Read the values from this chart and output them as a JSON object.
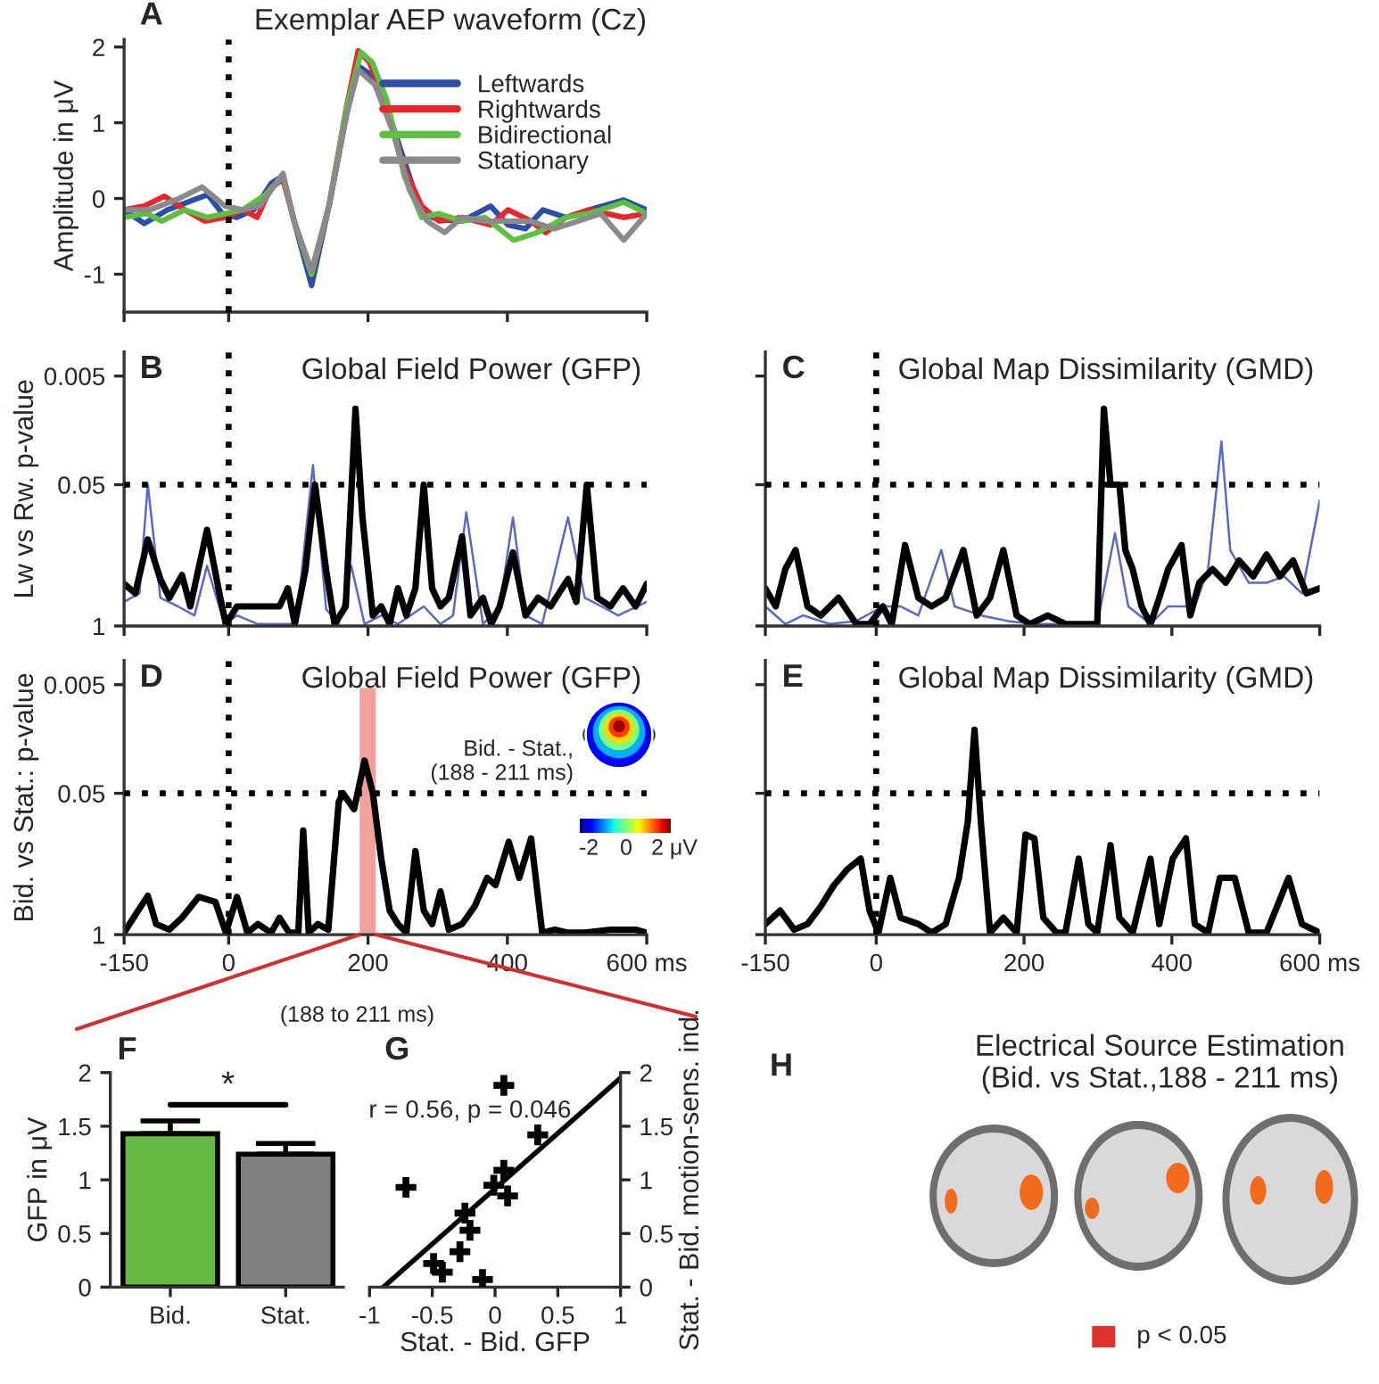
{
  "chart_data": [
    {
      "type": "line",
      "title": "Exemplar AEP waveform (Cz)",
      "ylabel": "Amplitude in μV",
      "annotations": [
        "A"
      ],
      "xlim": [
        -150,
        600
      ],
      "ylim": [
        -1.5,
        2.1
      ],
      "xticks": [
        -150,
        0,
        200,
        400,
        600
      ],
      "yticks": [
        -1,
        0,
        1,
        2
      ],
      "tick_labels": "y",
      "legend": "top right",
      "ref_lines": [
        {
          "axis": "x",
          "value": 0,
          "line_style": "dotted",
          "color": "#000000"
        }
      ],
      "series": [
        {
          "name": "Leftwards",
          "color": "#2b4fa8",
          "x": [
            -150,
            -121,
            -88,
            -51,
            -30,
            -9,
            12,
            36,
            61,
            78,
            94,
            119,
            144,
            169,
            186,
            202,
            227,
            252,
            277,
            302,
            335,
            376,
            401,
            426,
            451,
            484,
            517,
            567,
            600
          ],
          "values": [
            -0.15,
            -0.33,
            -0.15,
            -0.02,
            0.05,
            -0.2,
            -0.25,
            -0.15,
            0.2,
            0.3,
            -0.3,
            -1.15,
            -0.1,
            1.1,
            1.75,
            1.65,
            1.2,
            0.5,
            -0.2,
            -0.28,
            -0.3,
            -0.1,
            -0.35,
            -0.4,
            -0.15,
            -0.25,
            -0.15,
            -0.02,
            -0.15
          ]
        },
        {
          "name": "Rightwards",
          "color": "#e8262b",
          "x": [
            -150,
            -121,
            -92,
            -63,
            -34,
            -5,
            20,
            41,
            61,
            78,
            94,
            119,
            144,
            169,
            186,
            202,
            227,
            252,
            277,
            302,
            335,
            376,
            401,
            434,
            455,
            484,
            517,
            567,
            600
          ],
          "values": [
            -0.15,
            -0.1,
            0.03,
            -0.15,
            -0.3,
            -0.25,
            -0.15,
            -0.25,
            0.15,
            0.25,
            -0.3,
            -1.0,
            -0.1,
            1.2,
            1.95,
            1.8,
            1.2,
            0.4,
            -0.1,
            -0.3,
            -0.25,
            -0.35,
            -0.15,
            -0.3,
            -0.45,
            -0.25,
            -0.15,
            -0.25,
            -0.2
          ]
        },
        {
          "name": "Bidirectional",
          "color": "#5ec043",
          "x": [
            -150,
            -117,
            -96,
            -63,
            -30,
            -5,
            20,
            53,
            78,
            94,
            119,
            144,
            169,
            190,
            206,
            227,
            252,
            277,
            302,
            335,
            368,
            409,
            443,
            484,
            517,
            567,
            600
          ],
          "values": [
            -0.25,
            -0.2,
            -0.3,
            -0.15,
            -0.25,
            -0.2,
            -0.15,
            0.05,
            0.3,
            -0.3,
            -1.0,
            -0.1,
            1.2,
            1.93,
            1.8,
            1.3,
            0.3,
            -0.25,
            -0.2,
            -0.3,
            -0.25,
            -0.55,
            -0.45,
            -0.25,
            -0.2,
            -0.05,
            -0.2
          ]
        },
        {
          "name": "Stationary",
          "color": "#8a8a8a",
          "x": [
            -150,
            -113,
            -71,
            -38,
            -5,
            20,
            45,
            78,
            94,
            119,
            144,
            169,
            186,
            210,
            235,
            260,
            285,
            310,
            335,
            368,
            401,
            434,
            467,
            501,
            534,
            567,
            600
          ],
          "values": [
            -0.15,
            -0.15,
            0.0,
            0.15,
            -0.1,
            -0.15,
            -0.1,
            0.33,
            -0.3,
            -0.95,
            -0.1,
            1.1,
            1.7,
            1.5,
            0.9,
            0.1,
            -0.3,
            -0.45,
            -0.25,
            -0.3,
            -0.3,
            -0.3,
            -0.4,
            -0.3,
            -0.2,
            -0.55,
            -0.2
          ]
        }
      ]
    },
    {
      "type": "line",
      "title": "Global Field Power (GFP)",
      "ylabel": "Lw vs Rw. p-value",
      "annotations": [
        "B"
      ],
      "log": "y",
      "xlim": [
        -150,
        600
      ],
      "ylim": [
        1,
        0.003
      ],
      "xticks": [
        -150,
        0,
        200,
        400,
        600
      ],
      "yticks": [
        1,
        0.05,
        0.005
      ],
      "tick_labels": "y",
      "ref_lines": [
        {
          "axis": "x",
          "value": 0,
          "line_style": "dotted",
          "color": "#000000"
        },
        {
          "axis": "y",
          "value": 0.05,
          "line_style": "dotted",
          "color": "#000000"
        }
      ],
      "series": [
        {
          "color": "#5a6ac0",
          "x": [
            -150,
            -128,
            -116,
            -98,
            -73,
            -49,
            -31,
            -6,
            12,
            42,
            73,
            97,
            121,
            140,
            158,
            176,
            195,
            219,
            243,
            280,
            304,
            322,
            341,
            365,
            389,
            408,
            426,
            450,
            487,
            511,
            535,
            559,
            600
          ],
          "values": [
            0.6,
            0.5,
            0.05,
            0.55,
            0.66,
            0.8,
            0.28,
            0.96,
            0.8,
            0.96,
            0.96,
            0.96,
            0.033,
            0.7,
            0.96,
            0.28,
            0.96,
            0.8,
            0.96,
            0.66,
            0.96,
            0.8,
            0.09,
            0.96,
            0.66,
            0.1,
            0.8,
            0.96,
            0.1,
            0.55,
            0.66,
            0.8,
            0.6
          ]
        },
        {
          "color": "#000000",
          "x": [
            -150,
            -134,
            -116,
            -98,
            -85,
            -67,
            -55,
            -31,
            -12,
            -4,
            12,
            27,
            42,
            61,
            73,
            85,
            95,
            110,
            124,
            140,
            152,
            168,
            182,
            192,
            207,
            219,
            231,
            243,
            255,
            268,
            280,
            292,
            304,
            316,
            335,
            347,
            365,
            377,
            389,
            408,
            426,
            444,
            462,
            487,
            499,
            514,
            529,
            548,
            566,
            584,
            600
          ],
          "values": [
            0.41,
            0.5,
            0.16,
            0.37,
            0.55,
            0.34,
            0.66,
            0.13,
            0.55,
            0.96,
            0.66,
            0.66,
            0.66,
            0.66,
            0.66,
            0.45,
            0.96,
            0.31,
            0.05,
            0.31,
            0.96,
            0.66,
            0.01,
            0.1,
            0.8,
            0.66,
            0.96,
            0.45,
            0.8,
            0.45,
            0.05,
            0.45,
            0.66,
            0.55,
            0.15,
            0.8,
            0.55,
            0.96,
            0.66,
            0.21,
            0.8,
            0.55,
            0.66,
            0.37,
            0.6,
            0.05,
            0.55,
            0.66,
            0.45,
            0.66,
            0.41
          ]
        }
      ]
    },
    {
      "type": "line",
      "title": "Global Map Dissimilarity (GMD)",
      "annotations": [
        "C"
      ],
      "log": "y",
      "xlim": [
        -150,
        600
      ],
      "ylim": [
        1,
        0.003
      ],
      "xticks": [
        -150,
        0,
        200,
        400,
        600
      ],
      "yticks": [
        1,
        0.05,
        0.005
      ],
      "tick_labels": false,
      "ref_lines": [
        {
          "axis": "x",
          "value": 0,
          "line_style": "dotted",
          "color": "#000000"
        },
        {
          "axis": "y",
          "value": 0.05,
          "line_style": "dotted",
          "color": "#000000"
        }
      ],
      "series": [
        {
          "color": "#5a6ac0",
          "x": [
            -150,
            -123,
            -99,
            -63,
            -27,
            9,
            33,
            57,
            88,
            106,
            142,
            178,
            214,
            262,
            299,
            323,
            341,
            371,
            395,
            431,
            449,
            467,
            479,
            504,
            528,
            552,
            576,
            600
          ],
          "values": [
            0.66,
            0.96,
            0.8,
            0.96,
            0.9,
            0.66,
            0.66,
            0.8,
            0.2,
            0.66,
            0.8,
            0.9,
            0.96,
            0.96,
            0.96,
            0.14,
            0.66,
            0.96,
            0.66,
            0.66,
            0.3,
            0.02,
            0.2,
            0.4,
            0.4,
            0.35,
            0.5,
            0.07
          ]
        },
        {
          "color": "#000000",
          "x": [
            -150,
            -136,
            -123,
            -109,
            -93,
            -75,
            -51,
            -27,
            -9,
            9,
            21,
            39,
            57,
            75,
            94,
            118,
            136,
            154,
            172,
            190,
            208,
            232,
            256,
            280,
            299,
            308,
            317,
            329,
            337,
            347,
            359,
            371,
            383,
            395,
            413,
            425,
            437,
            455,
            473,
            491,
            510,
            528,
            546,
            564,
            582,
            600
          ],
          "values": [
            0.45,
            0.66,
            0.3,
            0.2,
            0.66,
            0.8,
            0.55,
            0.96,
            0.96,
            0.66,
            0.96,
            0.18,
            0.55,
            0.66,
            0.55,
            0.2,
            0.8,
            0.55,
            0.2,
            0.8,
            0.96,
            0.8,
            0.96,
            0.96,
            0.96,
            0.01,
            0.05,
            0.05,
            0.2,
            0.3,
            0.66,
            0.96,
            0.55,
            0.3,
            0.18,
            0.8,
            0.4,
            0.3,
            0.4,
            0.25,
            0.35,
            0.22,
            0.35,
            0.25,
            0.5,
            0.45
          ]
        }
      ]
    },
    {
      "type": "line",
      "title": "Global Field Power (GFP)",
      "ylabel": "Bid. vs Stat.: p-value",
      "annotations": [
        "D",
        "Bid. - Stat.,\n(188 - 211 ms)",
        "(188 to 211 ms)",
        "-2",
        "0",
        "2 μV"
      ],
      "log": "y",
      "xlim": [
        -150,
        600
      ],
      "ylim": [
        1,
        0.003
      ],
      "xticks": [
        -150,
        0,
        200,
        400,
        {
          "value": 600,
          "label": "600 ms"
        }
      ],
      "yticks": [
        1,
        0.05,
        0.005
      ],
      "bands": [
        {
          "axis": "x",
          "from": 188,
          "to": 211,
          "color": "#f2a09c"
        }
      ],
      "ref_lines": [
        {
          "axis": "x",
          "value": 0,
          "line_style": "dotted",
          "color": "#000000"
        },
        {
          "axis": "y",
          "value": 0.05,
          "line_style": "dotted",
          "color": "#000000"
        }
      ],
      "series": [
        {
          "color": "#000000",
          "x": [
            -150,
            -134,
            -116,
            -104,
            -85,
            -67,
            -43,
            -19,
            -4,
            12,
            27,
            42,
            61,
            73,
            87,
            100,
            107,
            115,
            128,
            143,
            158,
            164,
            180,
            195,
            207,
            219,
            231,
            243,
            255,
            268,
            280,
            292,
            304,
            316,
            335,
            353,
            371,
            383,
            402,
            417,
            434,
            450,
            468,
            487,
            511,
            548,
            584,
            600
          ],
          "values": [
            0.96,
            0.66,
            0.44,
            0.8,
            0.9,
            0.7,
            0.45,
            0.5,
            0.96,
            0.45,
            0.96,
            0.8,
            0.96,
            0.7,
            0.96,
            0.96,
            0.11,
            0.96,
            0.8,
            0.9,
            0.06,
            0.05,
            0.07,
            0.025,
            0.05,
            0.2,
            0.6,
            0.8,
            0.96,
            0.17,
            0.6,
            0.8,
            0.4,
            0.9,
            0.8,
            0.55,
            0.3,
            0.35,
            0.14,
            0.3,
            0.13,
            0.96,
            0.9,
            0.96,
            0.96,
            0.9,
            0.9,
            0.96
          ]
        }
      ]
    },
    {
      "type": "line",
      "title": "Global Map Dissimilarity (GMD)",
      "annotations": [
        "E"
      ],
      "log": "y",
      "xlim": [
        -150,
        600
      ],
      "ylim": [
        1,
        0.003
      ],
      "xticks": [
        -150,
        0,
        200,
        400,
        {
          "value": 600,
          "label": "600 ms"
        }
      ],
      "yticks": [
        1,
        0.05,
        0.005
      ],
      "tick_labels": "x",
      "ref_lines": [
        {
          "axis": "x",
          "value": 0,
          "line_style": "dotted",
          "color": "#000000"
        },
        {
          "axis": "y",
          "value": 0.05,
          "line_style": "dotted",
          "color": "#000000"
        }
      ],
      "series": [
        {
          "color": "#000000",
          "x": [
            -150,
            -130,
            -111,
            -93,
            -75,
            -57,
            -39,
            -21,
            -9,
            3,
            19,
            33,
            57,
            75,
            94,
            112,
            124,
            133,
            142,
            154,
            172,
            190,
            202,
            214,
            226,
            244,
            256,
            274,
            287,
            299,
            317,
            329,
            347,
            371,
            383,
            401,
            419,
            431,
            449,
            465,
            485,
            504,
            528,
            558,
            576,
            600
          ],
          "values": [
            0.8,
            0.6,
            0.9,
            0.8,
            0.55,
            0.35,
            0.25,
            0.2,
            0.6,
            0.96,
            0.3,
            0.7,
            0.8,
            0.96,
            0.8,
            0.3,
            0.09,
            0.013,
            0.1,
            0.96,
            0.7,
            0.96,
            0.12,
            0.13,
            0.7,
            0.96,
            0.96,
            0.2,
            0.8,
            0.96,
            0.15,
            0.7,
            0.96,
            0.2,
            0.8,
            0.2,
            0.13,
            0.8,
            0.96,
            0.3,
            0.3,
            0.96,
            0.96,
            0.3,
            0.8,
            0.96
          ]
        }
      ]
    },
    {
      "type": "bar",
      "ylabel": "GFP in μV",
      "annotations": [
        "F",
        "*"
      ],
      "categories": [
        "Bid.",
        "Stat."
      ],
      "values": [
        1.43,
        1.24
      ],
      "colors": [
        "#66bb46",
        "#808080"
      ],
      "errors": [
        [
          1.43,
          1.55
        ],
        [
          1.24,
          1.34
        ]
      ],
      "ylim": [
        0,
        2
      ],
      "yticks": [
        0,
        0.5,
        1,
        1.5,
        2
      ]
    },
    {
      "type": "scatter",
      "xlabel": "Stat. - Bid. GFP",
      "ylabel": "Stat. - Bid. motion-sens. ind.",
      "annotations": [
        "G",
        "r = 0.56, p = 0.046"
      ],
      "xlim": [
        -1,
        1
      ],
      "ylim": [
        0,
        2
      ],
      "xticks": [
        -1,
        -0.5,
        0,
        0.5,
        1
      ],
      "yticks": [
        0,
        0.5,
        1,
        1.5,
        2
      ],
      "series": [
        {
          "type": "scatter",
          "marker": "cross",
          "color": "#000000",
          "x": [
            0.07,
            0.34,
            -0.71,
            0.07,
            -0.01,
            0.1,
            -0.24,
            -0.2,
            -0.28,
            -0.49,
            -0.42,
            -0.1
          ],
          "values": [
            1.88,
            1.42,
            0.93,
            1.09,
            0.95,
            0.85,
            0.69,
            0.53,
            0.33,
            0.22,
            0.14,
            0.07
          ]
        },
        {
          "type": "line",
          "color": "#000000",
          "x": [
            -0.89,
            1
          ],
          "values": [
            0,
            1.95
          ]
        }
      ]
    },
    {
      "type": "other",
      "title": "Electrical Source Estimation\n(Bid. vs Stat.,188 - 211 ms)",
      "annotations": [
        "H",
        "p < 0.05"
      ]
    }
  ]
}
